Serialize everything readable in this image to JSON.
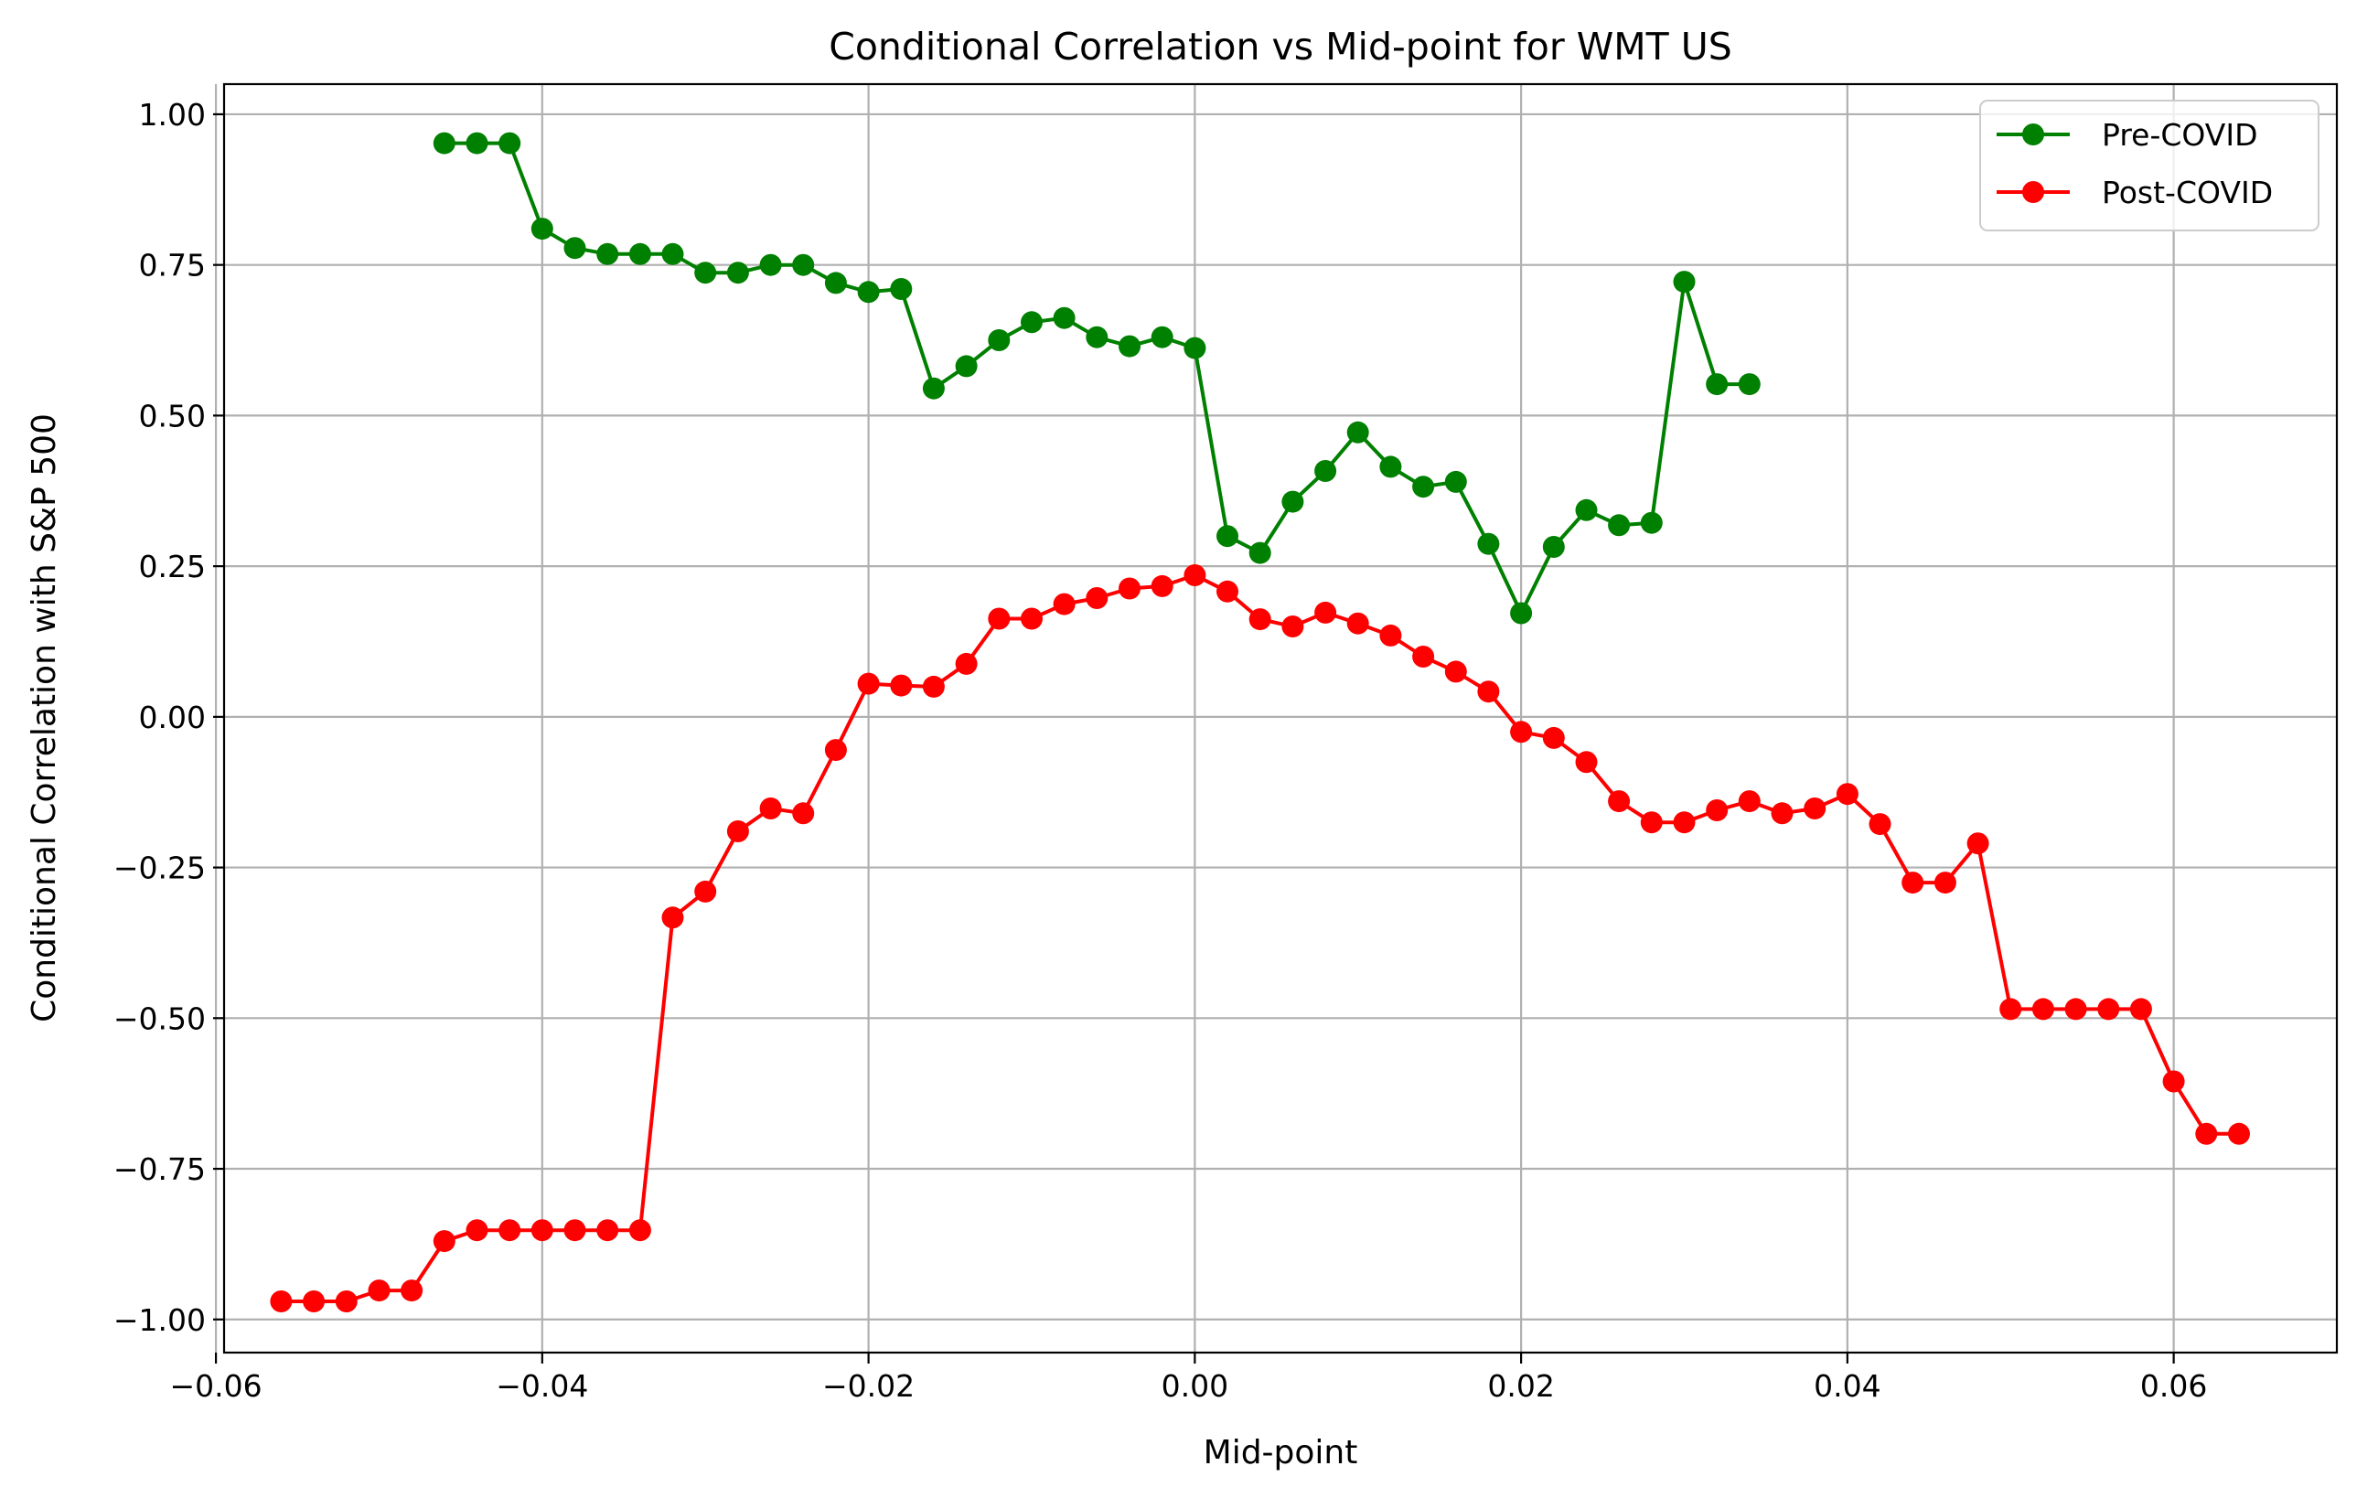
{
  "chart_data": {
    "type": "line",
    "title": "Conditional Correlation vs Mid-point for WMT US",
    "xlabel": "Mid-point",
    "ylabel": "Conditional Correlation with S&P 500",
    "xlim": [
      -0.0595,
      0.07
    ],
    "ylim": [
      -1.055,
      1.05
    ],
    "grid": true,
    "legend_position": "top-right",
    "x_ticks": [
      -0.06,
      -0.04,
      -0.02,
      0.0,
      0.02,
      0.04,
      0.06
    ],
    "x_tick_labels": [
      "−0.06",
      "−0.04",
      "−0.02",
      "0.00",
      "0.02",
      "0.04",
      "0.06"
    ],
    "y_ticks": [
      1.0,
      0.75,
      0.5,
      0.25,
      0.0,
      -0.25,
      -0.5,
      -0.75,
      -1.0
    ],
    "y_tick_labels": [
      "1.00",
      "0.75",
      "0.50",
      "0.25",
      "0.00",
      "−0.25",
      "−0.50",
      "−0.75",
      "−1.00"
    ],
    "series": [
      {
        "name": "Pre-COVID",
        "color": "#008000",
        "x": [
          -0.046,
          -0.044,
          -0.042,
          -0.04,
          -0.038,
          -0.036,
          -0.034,
          -0.032,
          -0.03,
          -0.028,
          -0.026,
          -0.024,
          -0.022,
          -0.02,
          -0.018,
          -0.016,
          -0.014,
          -0.012,
          -0.01,
          -0.008,
          -0.006,
          -0.004,
          -0.002,
          0.0,
          0.002,
          0.004,
          0.006,
          0.008,
          0.01,
          0.012,
          0.014,
          0.016,
          0.018,
          0.02,
          0.022,
          0.024,
          0.026,
          0.028,
          0.03,
          0.032,
          0.034
        ],
        "y": [
          0.952,
          0.952,
          0.952,
          0.81,
          0.778,
          0.768,
          0.768,
          0.768,
          0.737,
          0.737,
          0.75,
          0.75,
          0.72,
          0.705,
          0.71,
          0.545,
          0.582,
          0.625,
          0.655,
          0.662,
          0.63,
          0.615,
          0.63,
          0.612,
          0.3,
          0.272,
          0.357,
          0.408,
          0.472,
          0.415,
          0.382,
          0.39,
          0.287,
          0.172,
          0.282,
          0.343,
          0.318,
          0.322,
          0.722,
          0.552,
          0.552
        ]
      },
      {
        "name": "Post-COVID",
        "color": "#ff0000",
        "x": [
          -0.056,
          -0.054,
          -0.052,
          -0.05,
          -0.048,
          -0.046,
          -0.044,
          -0.042,
          -0.04,
          -0.038,
          -0.036,
          -0.034,
          -0.032,
          -0.03,
          -0.028,
          -0.026,
          -0.024,
          -0.022,
          -0.02,
          -0.018,
          -0.016,
          -0.014,
          -0.012,
          -0.01,
          -0.008,
          -0.006,
          -0.004,
          -0.002,
          0.0,
          0.002,
          0.004,
          0.006,
          0.008,
          0.01,
          0.012,
          0.014,
          0.016,
          0.018,
          0.02,
          0.022,
          0.024,
          0.026,
          0.028,
          0.03,
          0.032,
          0.034,
          0.036,
          0.038,
          0.04,
          0.042,
          0.044,
          0.046,
          0.048,
          0.05,
          0.052,
          0.054,
          0.056,
          0.058,
          0.06,
          0.062,
          0.064
        ],
        "y": [
          -0.97,
          -0.97,
          -0.97,
          -0.952,
          -0.952,
          -0.87,
          -0.852,
          -0.852,
          -0.852,
          -0.852,
          -0.852,
          -0.852,
          -0.333,
          -0.29,
          -0.19,
          -0.152,
          -0.16,
          -0.055,
          0.055,
          0.052,
          0.05,
          0.088,
          0.163,
          0.163,
          0.187,
          0.197,
          0.213,
          0.217,
          0.235,
          0.208,
          0.162,
          0.15,
          0.173,
          0.155,
          0.135,
          0.1,
          0.075,
          0.042,
          -0.025,
          -0.035,
          -0.075,
          -0.14,
          -0.175,
          -0.175,
          -0.155,
          -0.14,
          -0.16,
          -0.152,
          -0.128,
          -0.178,
          -0.275,
          -0.275,
          -0.21,
          -0.485,
          -0.485,
          -0.485,
          -0.485,
          -0.485,
          -0.605,
          -0.692,
          -0.692
        ]
      }
    ]
  }
}
